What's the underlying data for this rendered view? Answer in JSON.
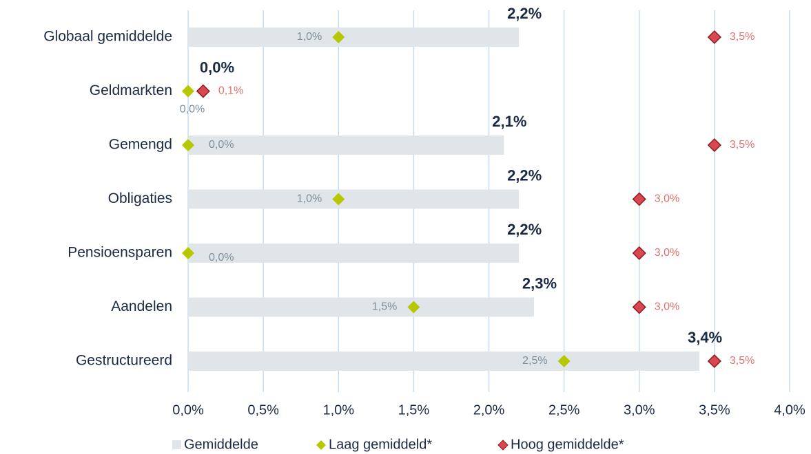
{
  "chart_data": {
    "type": "bar",
    "orientation": "horizontal",
    "categories": [
      "Globaal gemiddelde",
      "Geldmarkten",
      "Gemengd",
      "Obligaties",
      "Pensioensparen",
      "Aandelen",
      "Gestructureerd"
    ],
    "series": [
      {
        "name": "Gemiddelde",
        "marker": "bar",
        "color": "#dfe5e8",
        "values": [
          2.2,
          0.0,
          2.1,
          2.2,
          2.2,
          2.3,
          3.4
        ],
        "value_labels": [
          "2,2%",
          "0,0%",
          "2,1%",
          "2,2%",
          "2,2%",
          "2,3%",
          "3,4%"
        ]
      },
      {
        "name": "Laag gemiddeld*",
        "marker": "diamond",
        "color": "#b5c800",
        "values": [
          1.0,
          0.0,
          0.0,
          1.0,
          0.0,
          1.5,
          2.5
        ],
        "value_labels": [
          "1,0%",
          "0,0%",
          "0,0%",
          "1,0%",
          "0,0%",
          "1,5%",
          "2,5%"
        ]
      },
      {
        "name": "Hoog gemiddelde*",
        "marker": "diamond",
        "color": "#d9474f",
        "values": [
          3.5,
          0.1,
          3.5,
          3.0,
          3.0,
          3.0,
          3.5
        ],
        "value_labels": [
          "3,5%",
          "0,1%",
          "3,5%",
          "3,0%",
          "3,0%",
          "3,0%",
          "3,5%"
        ]
      }
    ],
    "xlim": [
      0,
      4
    ],
    "xticks": [
      {
        "value": 0,
        "label": "0,0%"
      },
      {
        "value": 0.5,
        "label": "0,5%"
      },
      {
        "value": 1,
        "label": "1,0%"
      },
      {
        "value": 1.5,
        "label": "1,5%"
      },
      {
        "value": 2,
        "label": "2,0%"
      },
      {
        "value": 2.5,
        "label": "2,5%"
      },
      {
        "value": 3,
        "label": "3,0%"
      },
      {
        "value": 3.5,
        "label": "3,5%"
      },
      {
        "value": 4,
        "label": "4,0%"
      }
    ],
    "grid": true,
    "legend": "bottom"
  }
}
